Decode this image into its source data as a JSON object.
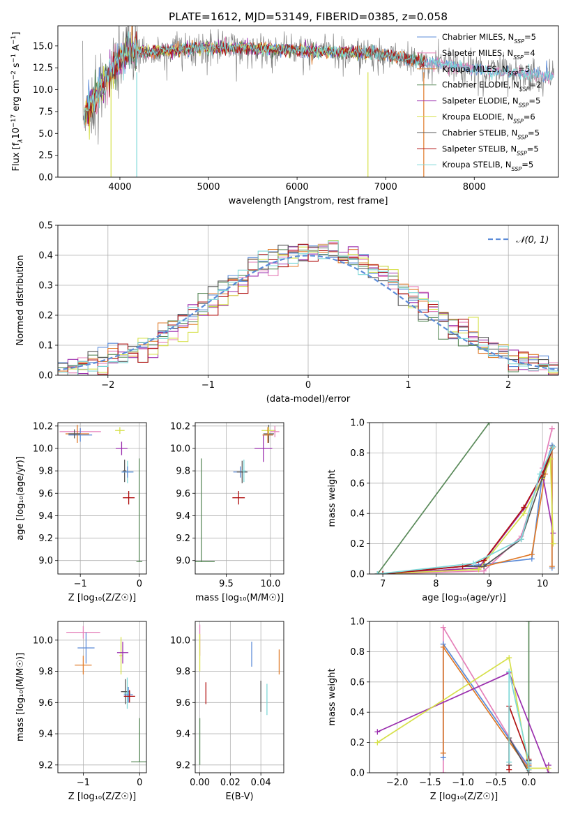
{
  "colors": {
    "chabrier_miles": "#5b8bd8",
    "salpeter_miles": "#e57fb8",
    "kroupa_miles": "#e07b2a",
    "chabrier_elodie": "#5a8a5a",
    "salpeter_elodie": "#9b2fae",
    "kroupa_elodie": "#d6e04a",
    "chabrier_stelib": "#555555",
    "salpeter_stelib": "#b01010",
    "kroupa_stelib": "#7fd8d8",
    "dashed_normal": "#5b8bd8",
    "grid": "#b0b0b0"
  },
  "chart_data": [
    {
      "id": "spectrum",
      "type": "line",
      "title": "PLATE=1612, MJD=53149, FIBERID=0385, z=0.058",
      "xlabel": "wavelength [Angstrom, rest frame]",
      "ylabel_parts": [
        "Flux [f",
        "λ",
        "10",
        "−17",
        " erg cm",
        "−2",
        " s",
        "−1",
        " A",
        "−1",
        "]"
      ],
      "xlim": [
        3300,
        8950
      ],
      "ylim": [
        0,
        17.3
      ],
      "xticks": [
        4000,
        5000,
        6000,
        7000,
        8000
      ],
      "yticks": [
        0.0,
        2.5,
        5.0,
        7.5,
        10.0,
        12.5,
        15.0
      ],
      "xtick_labels": [
        "4000",
        "5000",
        "6000",
        "7000",
        "8000"
      ],
      "ytick_labels": [
        "0.0",
        "2.5",
        "5.0",
        "7.5",
        "10.0",
        "12.5",
        "15.0"
      ],
      "grid": false,
      "legend_position": "upper-right",
      "series": [
        {
          "name": "Chabrier MILES, N",
          "sub": "SSP",
          "suffix": "=5",
          "color_key": "chabrier_miles"
        },
        {
          "name": "Salpeter MILES, N",
          "sub": "SSP",
          "suffix": "=4",
          "color_key": "salpeter_miles"
        },
        {
          "name": "Kroupa MILES, N",
          "sub": "SSP",
          "suffix": "=5",
          "color_key": "kroupa_miles"
        },
        {
          "name": "Chabrier ELODIE, N",
          "sub": "SSP",
          "suffix": "=2",
          "color_key": "chabrier_elodie"
        },
        {
          "name": "Salpeter ELODIE, N",
          "sub": "SSP",
          "suffix": "=5",
          "color_key": "salpeter_elodie"
        },
        {
          "name": "Kroupa ELODIE, N",
          "sub": "SSP",
          "suffix": "=6",
          "color_key": "kroupa_elodie"
        },
        {
          "name": "Chabrier STELIB, N",
          "sub": "SSP",
          "suffix": "=5",
          "color_key": "chabrier_stelib"
        },
        {
          "name": "Salpeter STELIB, N",
          "sub": "SSP",
          "suffix": "=5",
          "color_key": "salpeter_stelib"
        },
        {
          "name": "Kroupa STELIB, N",
          "sub": "SSP",
          "suffix": "=5",
          "color_key": "kroupa_stelib"
        }
      ],
      "continuum": {
        "x": [
          3600,
          3700,
          3800,
          3900,
          4000,
          4100,
          4300,
          4500,
          4800,
          5000,
          5300,
          5600,
          5900,
          6200,
          6500,
          6800,
          7100,
          7400,
          7700,
          8000,
          8300,
          8600,
          8900
        ],
        "y": [
          7.0,
          8.5,
          10.5,
          11.8,
          13.5,
          14.5,
          14.2,
          14.5,
          14.7,
          14.8,
          14.8,
          14.7,
          14.6,
          14.4,
          14.3,
          14.2,
          13.8,
          13.2,
          12.7,
          12.4,
          12.1,
          11.8,
          11.4
        ]
      },
      "models_end_x": [
        8900,
        8900,
        7450,
        7450,
        6800,
        6800,
        7450,
        7450,
        8900
      ],
      "model_drops_x": [
        4190,
        3900,
        6800,
        7430
      ]
    },
    {
      "id": "residuals",
      "type": "histogram",
      "xlabel": "(data-model)/error",
      "ylabel": "Normed distribution",
      "xlim": [
        -2.5,
        2.5
      ],
      "ylim": [
        0,
        0.5
      ],
      "xticks": [
        -2,
        -1,
        0,
        1,
        2
      ],
      "xtick_labels": [
        "−2",
        "−1",
        "0",
        "1",
        "2"
      ],
      "yticks": [
        0.0,
        0.1,
        0.2,
        0.3,
        0.4,
        0.5
      ],
      "ytick_labels": [
        "0.0",
        "0.1",
        "0.2",
        "0.3",
        "0.4",
        "0.5"
      ],
      "grid": true,
      "legend_position": "upper-right",
      "legend_label": "𝒩(0, 1)",
      "bin_width": 0.1,
      "normal_mean": 0,
      "normal_sigma": 1
    },
    {
      "id": "age_vs_Z",
      "type": "scatter",
      "xlabel": "Z [log₁₀(Z/Z☉)]",
      "ylabel": "age  [log₁₀(age/yr)]",
      "xlim": [
        -1.38,
        0.12
      ],
      "ylim": [
        8.88,
        10.23
      ],
      "xticks": [
        -1,
        0
      ],
      "xtick_labels": [
        "−1",
        "0"
      ],
      "yticks": [
        9.0,
        9.2,
        9.4,
        9.6,
        9.8,
        10.0,
        10.2
      ],
      "ytick_labels": [
        "9.0",
        "9.2",
        "9.4",
        "9.6",
        "9.8",
        "10.0",
        "10.2"
      ],
      "grid": true,
      "points": [
        {
          "x": -1.0,
          "y": 10.15,
          "xerr": 0.35,
          "yerr": 0.03,
          "color_key": "salpeter_miles"
        },
        {
          "x": -1.0,
          "y": 10.12,
          "xerr": 0.2,
          "yerr": 0.06,
          "color_key": "chabrier_miles"
        },
        {
          "x": -1.05,
          "y": 10.13,
          "xerr": 0.2,
          "yerr": 0.08,
          "color_key": "kroupa_miles"
        },
        {
          "x": -1.1,
          "y": 10.13,
          "xerr": 0.1,
          "yerr": 0.04,
          "color_key": "chabrier_stelib"
        },
        {
          "x": -0.33,
          "y": 10.16,
          "xerr": 0.08,
          "yerr": 0.03,
          "color_key": "kroupa_elodie"
        },
        {
          "x": -0.3,
          "y": 10.0,
          "xerr": 0.1,
          "yerr": 0.06,
          "color_key": "salpeter_elodie"
        },
        {
          "x": -0.25,
          "y": 9.8,
          "xerr": 0.03,
          "yerr": 0.1,
          "color_key": "chabrier_stelib"
        },
        {
          "x": -0.2,
          "y": 9.79,
          "xerr": 0.1,
          "yerr": 0.1,
          "color_key": "kroupa_stelib"
        },
        {
          "x": -0.2,
          "y": 9.79,
          "xerr": 0.1,
          "yerr": 0.05,
          "color_key": "chabrier_miles"
        },
        {
          "x": -0.18,
          "y": 9.56,
          "xerr": 0.1,
          "yerr": 0.06,
          "color_key": "salpeter_stelib"
        },
        {
          "x": 0.0,
          "y": 8.99,
          "xerr": 0.05,
          "yerr": 0.0,
          "color_key": "chabrier_elodie"
        },
        {
          "x": 0.0,
          "y": 9.45,
          "xerr": 0.0,
          "yerr": 0.46,
          "color_key": "chabrier_elodie"
        }
      ]
    },
    {
      "id": "age_vs_mass",
      "type": "scatter",
      "xlabel": "mass [log₁₀(M/M☉)]",
      "ylabel": "",
      "xlim": [
        9.15,
        10.15
      ],
      "ylim": [
        8.88,
        10.23
      ],
      "xticks": [
        9.5,
        10.0
      ],
      "xtick_labels": [
        "9.5",
        "10.0"
      ],
      "yticks": [
        9.0,
        9.2,
        9.4,
        9.6,
        9.8,
        10.0,
        10.2
      ],
      "ytick_labels": [
        "9.0",
        "9.2",
        "9.4",
        "9.6",
        "9.8",
        "10.0",
        "10.2"
      ],
      "grid": true,
      "points": [
        {
          "x": 9.22,
          "y": 8.99,
          "xerr": 0.15,
          "yerr": 0.0,
          "color_key": "chabrier_elodie"
        },
        {
          "x": 9.22,
          "y": 9.45,
          "xerr": 0.0,
          "yerr": 0.46,
          "color_key": "chabrier_elodie"
        },
        {
          "x": 9.64,
          "y": 9.56,
          "xerr": 0.07,
          "yerr": 0.06,
          "color_key": "salpeter_stelib"
        },
        {
          "x": 9.66,
          "y": 9.79,
          "xerr": 0.08,
          "yerr": 0.05,
          "color_key": "chabrier_miles"
        },
        {
          "x": 9.68,
          "y": 9.79,
          "xerr": 0.06,
          "yerr": 0.1,
          "color_key": "chabrier_stelib"
        },
        {
          "x": 9.7,
          "y": 9.8,
          "xerr": 0.02,
          "yerr": 0.1,
          "color_key": "kroupa_stelib"
        },
        {
          "x": 9.92,
          "y": 10.0,
          "xerr": 0.1,
          "yerr": 0.12,
          "color_key": "salpeter_elodie"
        },
        {
          "x": 9.98,
          "y": 10.12,
          "xerr": 0.05,
          "yerr": 0.06,
          "color_key": "chabrier_miles"
        },
        {
          "x": 9.98,
          "y": 10.13,
          "xerr": 0.06,
          "yerr": 0.08,
          "color_key": "chabrier_stelib"
        },
        {
          "x": 9.98,
          "y": 10.16,
          "xerr": 0.08,
          "yerr": 0.03,
          "color_key": "kroupa_elodie"
        },
        {
          "x": 10.05,
          "y": 10.15,
          "xerr": 0.05,
          "yerr": 0.05,
          "color_key": "salpeter_miles"
        },
        {
          "x": 9.97,
          "y": 10.12,
          "xerr": 0.06,
          "yerr": 0.07,
          "color_key": "kroupa_miles"
        }
      ]
    },
    {
      "id": "weight_vs_age",
      "type": "line",
      "xlabel": "age  [log₁₀(age/yr)]",
      "ylabel": "mass weight",
      "xlim": [
        6.75,
        10.3
      ],
      "ylim": [
        0,
        1.0
      ],
      "xticks": [
        7,
        8,
        9,
        10
      ],
      "xtick_labels": [
        "7",
        "8",
        "9",
        "10"
      ],
      "yticks": [
        0.0,
        0.2,
        0.4,
        0.6,
        0.8,
        1.0
      ],
      "ytick_labels": [
        "0.0",
        "0.2",
        "0.4",
        "0.6",
        "0.8",
        "1.0"
      ],
      "grid": true,
      "series": [
        {
          "color_key": "chabrier_elodie",
          "x": [
            6.9,
            9.0
          ],
          "y": [
            0.0,
            1.0
          ]
        },
        {
          "color_key": "chabrier_miles",
          "x": [
            6.9,
            8.8,
            9.8,
            10.0,
            10.18,
            10.18
          ],
          "y": [
            0.0,
            0.06,
            0.1,
            0.66,
            0.85,
            0.04
          ]
        },
        {
          "color_key": "salpeter_miles",
          "x": [
            7.0,
            8.9,
            9.6,
            10.0,
            10.18
          ],
          "y": [
            0.0,
            0.02,
            0.25,
            0.7,
            0.96
          ]
        },
        {
          "color_key": "kroupa_miles",
          "x": [
            7.0,
            8.8,
            9.8,
            10.05,
            10.18,
            10.18
          ],
          "y": [
            0.0,
            0.04,
            0.13,
            0.66,
            0.83,
            0.05
          ]
        },
        {
          "color_key": "salpeter_elodie",
          "x": [
            6.9,
            8.8,
            9.65,
            10.0,
            10.2
          ],
          "y": [
            0.0,
            0.04,
            0.43,
            0.66,
            0.27
          ]
        },
        {
          "color_key": "kroupa_elodie",
          "x": [
            6.9,
            8.8,
            9.65,
            10.0,
            10.15,
            10.2
          ],
          "y": [
            0.0,
            0.03,
            0.4,
            0.63,
            0.76,
            0.2
          ]
        },
        {
          "color_key": "chabrier_stelib",
          "x": [
            7.0,
            8.5,
            8.9,
            9.6,
            10.0,
            10.2
          ],
          "y": [
            0.0,
            0.05,
            0.05,
            0.23,
            0.64,
            0.84
          ]
        },
        {
          "color_key": "salpeter_stelib",
          "x": [
            7.0,
            8.5,
            8.9,
            9.65,
            10.0,
            10.2
          ],
          "y": [
            0.0,
            0.05,
            0.09,
            0.44,
            0.66,
            0.84
          ]
        },
        {
          "color_key": "kroupa_stelib",
          "x": [
            6.9,
            8.7,
            9.6,
            9.95,
            10.2
          ],
          "y": [
            0.0,
            0.07,
            0.23,
            0.66,
            0.84
          ]
        }
      ]
    },
    {
      "id": "mass_vs_Z",
      "type": "scatter",
      "xlabel": "Z [log₁₀(Z/Z☉)]",
      "ylabel": "mass [log₁₀(M/M☉)]",
      "xlim": [
        -1.45,
        0.12
      ],
      "ylim": [
        9.15,
        10.12
      ],
      "xticks": [
        -1,
        0
      ],
      "xtick_labels": [
        "−1",
        "0"
      ],
      "yticks": [
        9.2,
        9.4,
        9.6,
        9.8,
        10.0
      ],
      "ytick_labels": [
        "9.2",
        "9.4",
        "9.6",
        "9.8",
        "10.0"
      ],
      "grid": true,
      "points": [
        {
          "x": -1.0,
          "y": 10.05,
          "xerr": 0.3,
          "yerr": 0.04,
          "color_key": "salpeter_miles"
        },
        {
          "x": -0.95,
          "y": 9.95,
          "xerr": 0.15,
          "yerr": 0.1,
          "color_key": "chabrier_miles"
        },
        {
          "x": -1.0,
          "y": 9.84,
          "xerr": 0.15,
          "yerr": 0.06,
          "color_key": "kroupa_miles"
        },
        {
          "x": -0.33,
          "y": 9.9,
          "xerr": 0.03,
          "yerr": 0.12,
          "color_key": "kroupa_elodie"
        },
        {
          "x": -0.3,
          "y": 9.92,
          "xerr": 0.1,
          "yerr": 0.07,
          "color_key": "salpeter_elodie"
        },
        {
          "x": -0.25,
          "y": 9.67,
          "xerr": 0.08,
          "yerr": 0.08,
          "color_key": "chabrier_stelib"
        },
        {
          "x": -0.22,
          "y": 9.66,
          "xerr": 0.06,
          "yerr": 0.1,
          "color_key": "kroupa_stelib"
        },
        {
          "x": -0.2,
          "y": 9.65,
          "xerr": 0.08,
          "yerr": 0.05,
          "color_key": "chabrier_miles"
        },
        {
          "x": -0.18,
          "y": 9.64,
          "xerr": 0.1,
          "yerr": 0.04,
          "color_key": "salpeter_stelib"
        },
        {
          "x": 0.0,
          "y": 9.22,
          "xerr": 0.15,
          "yerr": 0.0,
          "color_key": "chabrier_elodie"
        },
        {
          "x": 0.0,
          "y": 9.36,
          "xerr": 0.0,
          "yerr": 0.14,
          "color_key": "chabrier_elodie"
        }
      ]
    },
    {
      "id": "mass_vs_ebv",
      "type": "scatter",
      "xlabel": "E(B-V)",
      "ylabel": "",
      "xlim": [
        -0.003,
        0.055
      ],
      "ylim": [
        9.15,
        10.12
      ],
      "xticks": [
        0.0,
        0.02,
        0.04
      ],
      "xtick_labels": [
        "0.00",
        "0.02",
        "0.04"
      ],
      "yticks": [
        9.2,
        9.4,
        9.6,
        9.8,
        10.0
      ],
      "ytick_labels": [
        "9.2",
        "9.4",
        "9.6",
        "9.8",
        "10.0"
      ],
      "grid": true,
      "points": [
        {
          "x": 0.0,
          "y": 9.35,
          "xerr": 0.0,
          "yerr": 0.15,
          "color_key": "chabrier_elodie"
        },
        {
          "x": 0.0,
          "y": 10.0,
          "xerr": 0.0,
          "yerr": 0.1,
          "color_key": "salpeter_miles"
        },
        {
          "x": 0.0,
          "y": 9.92,
          "xerr": 0.0,
          "yerr": 0.12,
          "color_key": "kroupa_elodie"
        },
        {
          "x": 0.004,
          "y": 9.66,
          "xerr": 0.0,
          "yerr": 0.07,
          "color_key": "salpeter_stelib"
        },
        {
          "x": 0.034,
          "y": 9.91,
          "xerr": 0.0,
          "yerr": 0.08,
          "color_key": "chabrier_miles"
        },
        {
          "x": 0.04,
          "y": 9.64,
          "xerr": 0.0,
          "yerr": 0.1,
          "color_key": "chabrier_stelib"
        },
        {
          "x": 0.044,
          "y": 9.62,
          "xerr": 0.0,
          "yerr": 0.1,
          "color_key": "kroupa_stelib"
        },
        {
          "x": 0.052,
          "y": 9.86,
          "xerr": 0.0,
          "yerr": 0.08,
          "color_key": "kroupa_miles"
        }
      ]
    },
    {
      "id": "weight_vs_Z",
      "type": "line",
      "xlabel": "Z [log₁₀(Z/Z☉)]",
      "ylabel": "mass weight",
      "xlim": [
        -2.42,
        0.45
      ],
      "ylim": [
        0,
        1.0
      ],
      "xticks": [
        -2.0,
        -1.5,
        -1.0,
        -0.5,
        0.0
      ],
      "xtick_labels": [
        "−2.0",
        "−1.5",
        "−1.0",
        "−0.5",
        "0.0"
      ],
      "yticks": [
        0.0,
        0.2,
        0.4,
        0.6,
        0.8,
        1.0
      ],
      "ytick_labels": [
        "0.0",
        "0.2",
        "0.4",
        "0.6",
        "0.8",
        "1.0"
      ],
      "grid": true,
      "series": [
        {
          "color_key": "chabrier_elodie",
          "x": [
            0.0,
            0.0
          ],
          "y": [
            0.0,
            1.0
          ]
        },
        {
          "color_key": "salpeter_miles",
          "x": [
            -1.3,
            -1.3,
            0.0,
            0.0
          ],
          "y": [
            0.0,
            0.96,
            0.02,
            0.0
          ]
        },
        {
          "color_key": "chabrier_miles",
          "x": [
            -1.3,
            -1.3,
            0.0,
            0.0
          ],
          "y": [
            0.1,
            0.85,
            0.04,
            0.06
          ]
        },
        {
          "color_key": "kroupa_miles",
          "x": [
            -1.3,
            -1.3,
            0.0,
            0.0
          ],
          "y": [
            0.13,
            0.83,
            0.02,
            0.05
          ]
        },
        {
          "color_key": "salpeter_elodie",
          "x": [
            -2.3,
            -0.3,
            0.3,
            0.3
          ],
          "y": [
            0.27,
            0.66,
            0.0,
            0.05
          ]
        },
        {
          "color_key": "kroupa_elodie",
          "x": [
            -2.3,
            -0.3,
            0.0,
            0.3
          ],
          "y": [
            0.2,
            0.76,
            0.03,
            0.03
          ]
        },
        {
          "color_key": "chabrier_stelib",
          "x": [
            -0.3,
            -0.3,
            0.0,
            0.0
          ],
          "y": [
            0.05,
            0.23,
            0.0,
            0.08
          ]
        },
        {
          "color_key": "salpeter_stelib",
          "x": [
            -0.3,
            -0.3,
            0.0,
            0.0
          ],
          "y": [
            0.02,
            0.44,
            0.09,
            0.02
          ]
        },
        {
          "color_key": "kroupa_stelib",
          "x": [
            -0.3,
            -0.3,
            0.0,
            0.0
          ],
          "y": [
            0.07,
            0.67,
            0.07,
            0.02
          ]
        }
      ]
    }
  ]
}
